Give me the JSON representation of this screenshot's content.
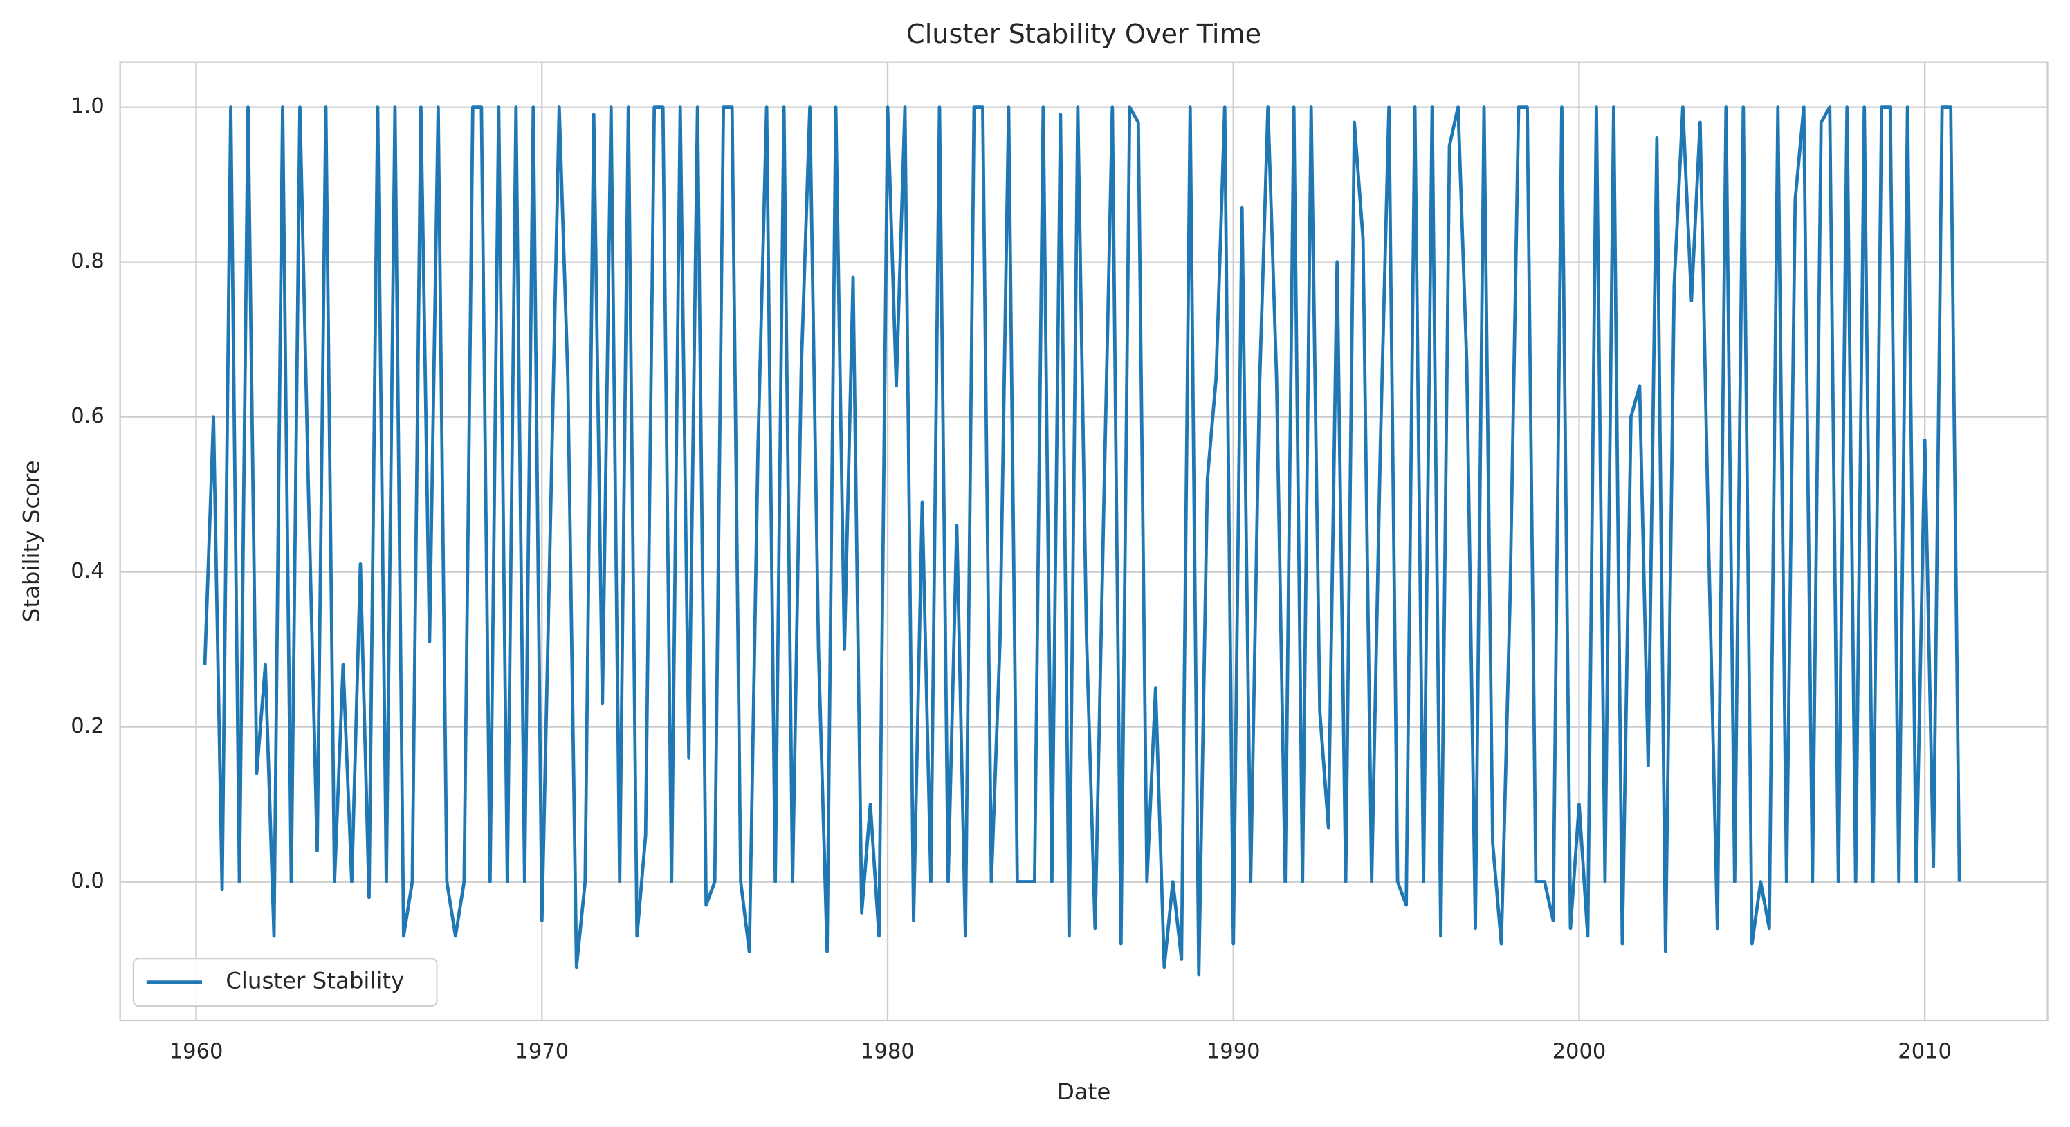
{
  "chart_data": {
    "type": "line",
    "title": "Cluster Stability Over Time",
    "xlabel": "Date",
    "ylabel": "Stability Score",
    "x": [
      1960.25,
      1960.5,
      1960.75,
      1961,
      1961.25,
      1961.5,
      1961.75,
      1962,
      1962.25,
      1962.5,
      1962.75,
      1963,
      1963.25,
      1963.5,
      1963.75,
      1964,
      1964.25,
      1964.5,
      1964.75,
      1965,
      1965.25,
      1965.5,
      1965.75,
      1966,
      1966.25,
      1966.5,
      1966.75,
      1967,
      1967.25,
      1967.5,
      1967.75,
      1968,
      1968.25,
      1968.5,
      1968.75,
      1969,
      1969.25,
      1969.5,
      1969.75,
      1970,
      1970.25,
      1970.5,
      1970.75,
      1971,
      1971.25,
      1971.5,
      1971.75,
      1972,
      1972.25,
      1972.5,
      1972.75,
      1973,
      1973.25,
      1973.5,
      1973.75,
      1974,
      1974.25,
      1974.5,
      1974.75,
      1975,
      1975.25,
      1975.5,
      1975.75,
      1976,
      1976.25,
      1976.5,
      1976.75,
      1977,
      1977.25,
      1977.5,
      1977.75,
      1978,
      1978.25,
      1978.5,
      1978.75,
      1979,
      1979.25,
      1979.5,
      1979.75,
      1980,
      1980.25,
      1980.5,
      1980.75,
      1981,
      1981.25,
      1981.5,
      1981.75,
      1982,
      1982.25,
      1982.5,
      1982.75,
      1983,
      1983.25,
      1983.5,
      1983.75,
      1984,
      1984.25,
      1984.5,
      1984.75,
      1985,
      1985.25,
      1985.5,
      1985.75,
      1986,
      1986.25,
      1986.5,
      1986.75,
      1987,
      1987.25,
      1987.5,
      1987.75,
      1988,
      1988.25,
      1988.5,
      1988.75,
      1989,
      1989.25,
      1989.5,
      1989.75,
      1990,
      1990.25,
      1990.5,
      1990.75,
      1991,
      1991.25,
      1991.5,
      1991.75,
      1992,
      1992.25,
      1992.5,
      1992.75,
      1993,
      1993.25,
      1993.5,
      1993.75,
      1994,
      1994.25,
      1994.5,
      1994.75,
      1995,
      1995.25,
      1995.5,
      1995.75,
      1996,
      1996.25,
      1996.5,
      1996.75,
      1997,
      1997.25,
      1997.5,
      1997.75,
      1998,
      1998.25,
      1998.5,
      1998.75,
      1999,
      1999.25,
      1999.5,
      1999.75,
      2000,
      2000.25,
      2000.5,
      2000.75,
      2001,
      2001.25,
      2001.5,
      2001.75,
      2002,
      2002.25,
      2002.5,
      2002.75,
      2003,
      2003.25,
      2003.5,
      2003.75,
      2004,
      2004.25,
      2004.5,
      2004.75,
      2005,
      2005.25,
      2005.5,
      2005.75,
      2006,
      2006.25,
      2006.5,
      2006.75,
      2007,
      2007.25,
      2007.5,
      2007.75,
      2008,
      2008.25,
      2008.5,
      2008.75,
      2009,
      2009.25,
      2009.5,
      2009.75,
      2010,
      2010.25,
      2010.5,
      2010.75,
      2011
    ],
    "series": [
      {
        "name": "Cluster Stability",
        "color": "#1f77b4",
        "values": [
          0.28,
          0.6,
          -0.01,
          1,
          0,
          1,
          0.14,
          0.28,
          -0.07,
          1,
          0,
          1,
          0.5,
          0.04,
          1,
          0,
          0.28,
          0,
          0.41,
          -0.02,
          1,
          0,
          1,
          -0.07,
          0,
          1,
          0.31,
          1,
          0,
          -0.07,
          0,
          1,
          1,
          0,
          1,
          0,
          1,
          0,
          1,
          -0.05,
          0.47,
          1,
          0.65,
          -0.11,
          0,
          0.99,
          0.23,
          1,
          0,
          1,
          -0.07,
          0.06,
          1,
          1,
          0,
          1,
          0.16,
          1,
          -0.03,
          0,
          1,
          1,
          0,
          -0.09,
          0.56,
          1,
          0,
          1,
          0,
          0.66,
          1,
          0.3,
          -0.09,
          1,
          0.3,
          0.78,
          -0.04,
          0.1,
          -0.07,
          1,
          0.64,
          1,
          -0.05,
          0.49,
          0,
          1,
          0,
          0.46,
          -0.07,
          1,
          1,
          0,
          0.31,
          1,
          0,
          0,
          0,
          1,
          0,
          0.99,
          -0.07,
          1,
          0.32,
          -0.06,
          0.48,
          1,
          -0.08,
          1,
          0.98,
          0,
          0.25,
          -0.11,
          0,
          -0.1,
          1,
          -0.12,
          0.52,
          0.65,
          1,
          -0.08,
          0.87,
          0,
          0.63,
          1,
          0.65,
          0,
          1,
          0,
          1,
          0.22,
          0.07,
          0.8,
          0,
          0.98,
          0.83,
          0,
          0.56,
          1,
          0,
          -0.03,
          1,
          0,
          1,
          -0.07,
          0.95,
          1,
          0.67,
          -0.06,
          1,
          0.05,
          -0.08,
          0.36,
          1,
          1,
          0,
          0,
          -0.05,
          1,
          -0.06,
          0.1,
          -0.07,
          1,
          0,
          1,
          -0.08,
          0.6,
          0.64,
          0.15,
          0.96,
          -0.09,
          0.77,
          1,
          0.75,
          0.98,
          0.43,
          -0.06,
          1,
          0,
          1,
          -0.08,
          0,
          -0.06,
          1,
          0,
          0.88,
          1,
          0,
          0.98,
          1,
          0,
          1,
          0,
          1,
          0,
          1,
          1,
          0,
          1,
          0,
          0.57,
          0.02,
          1,
          1,
          0
        ]
      }
    ],
    "xlim": [
      1957.8,
      2013.55
    ],
    "ylim": [
      -0.179,
      1.058
    ],
    "xticks": [
      1960,
      1970,
      1980,
      1990,
      2000,
      2010
    ],
    "yticks": [
      {
        "value": 0,
        "label": "0.0"
      },
      0.2,
      0.4,
      0.6,
      0.8,
      {
        "value": 1,
        "label": "1.0"
      }
    ],
    "grid": true,
    "legend": "lower left"
  }
}
